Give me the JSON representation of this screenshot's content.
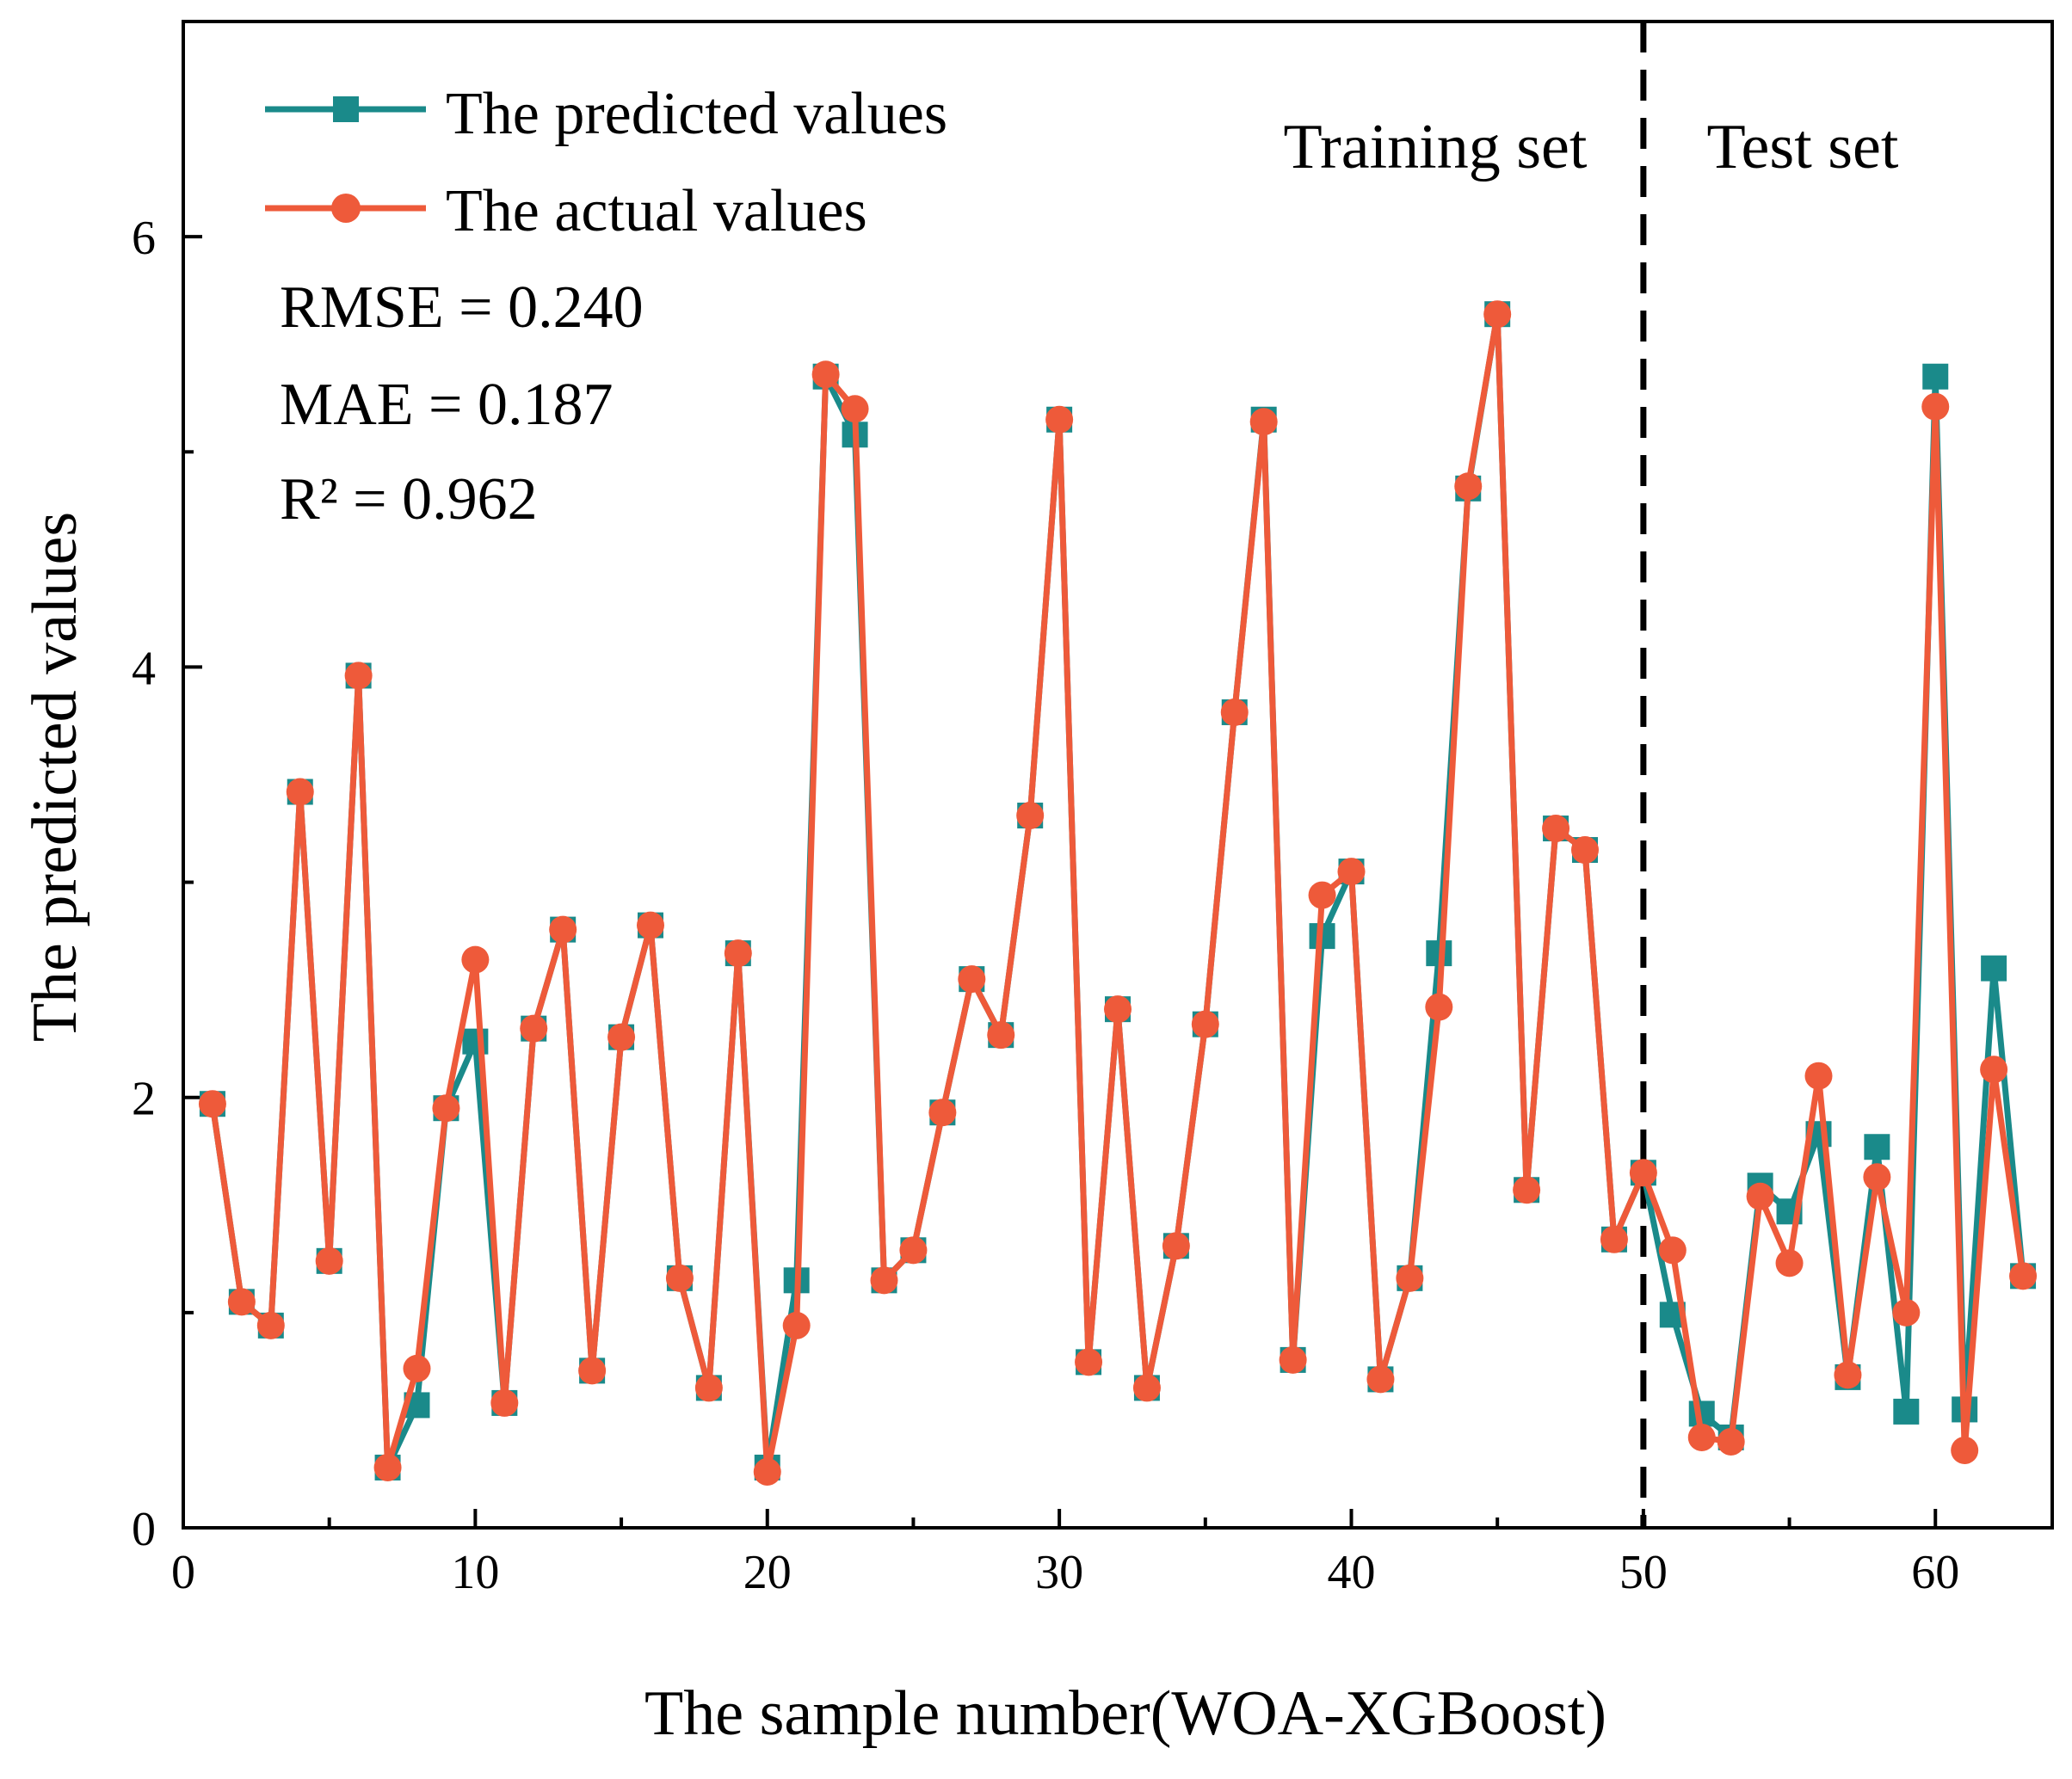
{
  "chart_data": {
    "type": "line",
    "title": "",
    "xlabel": "The sample number(WOA-XGBoost)",
    "ylabel": "The predicted values",
    "xlim": [
      0,
      64
    ],
    "ylim": [
      0,
      7
    ],
    "xticks": [
      0,
      10,
      20,
      30,
      40,
      50,
      60
    ],
    "yticks": [
      0,
      2,
      4,
      6
    ],
    "x": [
      1,
      2,
      3,
      4,
      5,
      6,
      7,
      8,
      9,
      10,
      11,
      12,
      13,
      14,
      15,
      16,
      17,
      18,
      19,
      20,
      21,
      22,
      23,
      24,
      25,
      26,
      27,
      28,
      29,
      30,
      31,
      32,
      33,
      34,
      35,
      36,
      37,
      38,
      39,
      40,
      41,
      42,
      43,
      44,
      45,
      46,
      47,
      48,
      49,
      50,
      51,
      52,
      53,
      54,
      55,
      56,
      57,
      58,
      59,
      60,
      61,
      62,
      63
    ],
    "series": [
      {
        "name": "The predicted values",
        "color": "#1a8a8a",
        "marker": "square",
        "values": [
          1.97,
          1.05,
          0.94,
          3.42,
          1.24,
          3.96,
          0.28,
          0.57,
          1.95,
          2.26,
          0.58,
          2.32,
          2.78,
          0.73,
          2.28,
          2.8,
          1.16,
          0.65,
          2.67,
          0.28,
          1.15,
          5.35,
          5.08,
          1.15,
          1.29,
          1.93,
          2.55,
          2.29,
          3.31,
          5.15,
          0.77,
          2.41,
          0.65,
          1.31,
          2.34,
          3.79,
          5.15,
          0.78,
          2.75,
          3.05,
          0.69,
          1.16,
          2.67,
          4.83,
          5.64,
          1.57,
          3.25,
          3.15,
          1.34,
          1.65,
          0.99,
          0.53,
          0.42,
          1.59,
          1.47,
          1.83,
          0.7,
          1.77,
          0.54,
          5.35,
          0.55,
          2.6,
          1.17
        ]
      },
      {
        "name": "The actual values",
        "color": "#ee5a3a",
        "marker": "circle",
        "values": [
          1.97,
          1.05,
          0.94,
          3.42,
          1.24,
          3.96,
          0.28,
          0.74,
          1.95,
          2.64,
          0.58,
          2.32,
          2.78,
          0.73,
          2.28,
          2.8,
          1.16,
          0.65,
          2.67,
          0.26,
          0.94,
          5.36,
          5.2,
          1.15,
          1.29,
          1.93,
          2.55,
          2.29,
          3.31,
          5.15,
          0.77,
          2.41,
          0.65,
          1.31,
          2.34,
          3.79,
          5.14,
          0.78,
          2.94,
          3.05,
          0.69,
          1.16,
          2.42,
          4.84,
          5.64,
          1.57,
          3.25,
          3.15,
          1.34,
          1.65,
          1.29,
          0.42,
          0.4,
          1.54,
          1.23,
          2.1,
          0.71,
          1.63,
          1.0,
          5.21,
          0.36,
          2.13,
          1.17
        ]
      }
    ],
    "divider": {
      "x": 50,
      "style": "dashed"
    },
    "regions": [
      "Training set",
      "Test set"
    ],
    "annotations": [
      "RMSE = 0.240",
      "MAE = 0.187",
      "R² = 0.962"
    ],
    "legend_position": "top-left"
  }
}
